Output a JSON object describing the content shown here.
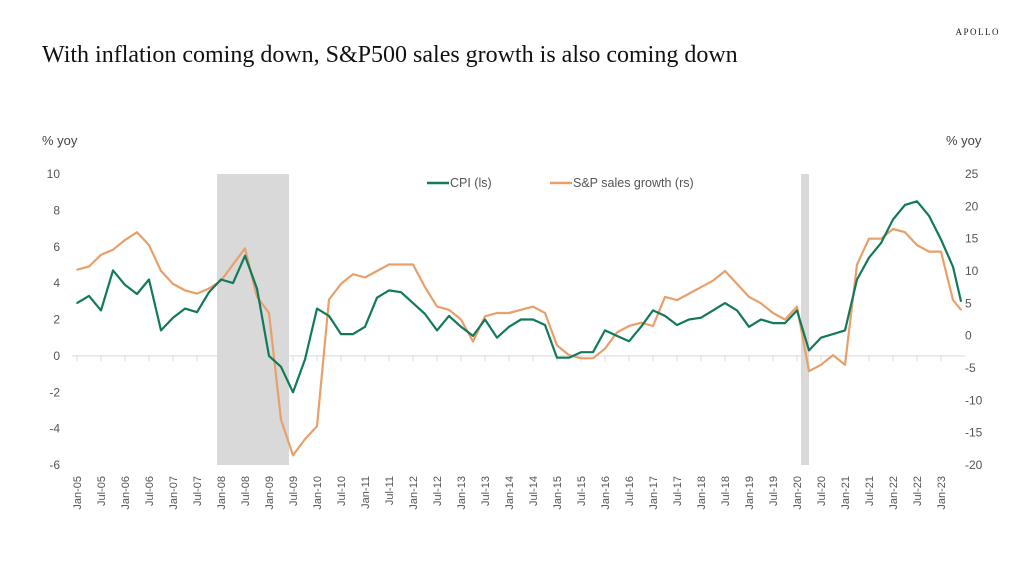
{
  "brand": "APOLLO",
  "title": "With inflation coming down, S&P500 sales growth is also coming down",
  "chart_data": {
    "type": "line",
    "title": "With inflation coming down, S&P500 sales growth is also coming down",
    "ylabel_left": "% yoy",
    "ylabel_right": "% yoy",
    "ylim_left": [
      -6,
      10
    ],
    "yticks_left": [
      10,
      8,
      6,
      4,
      2,
      0,
      -2,
      -4,
      -6
    ],
    "ylim_right": [
      -20,
      25
    ],
    "yticks_right": [
      25,
      20,
      15,
      10,
      5,
      0,
      -5,
      -10,
      -15,
      -20
    ],
    "legend_position": "top",
    "grid": false,
    "xtick_labels": [
      "Jan-05",
      "Jul-05",
      "Jan-06",
      "Jul-06",
      "Jan-07",
      "Jul-07",
      "Jan-08",
      "Jul-08",
      "Jan-09",
      "Jul-09",
      "Jan-10",
      "Jul-10",
      "Jan-11",
      "Jul-11",
      "Jan-12",
      "Jul-12",
      "Jan-13",
      "Jul-13",
      "Jan-14",
      "Jul-14",
      "Jan-15",
      "Jul-15",
      "Jan-16",
      "Jul-16",
      "Jan-17",
      "Jul-17",
      "Jan-18",
      "Jul-18",
      "Jan-19",
      "Jul-19",
      "Jan-20",
      "Jul-20",
      "Jan-21",
      "Jul-21",
      "Jan-22",
      "Jul-22",
      "Jan-23"
    ],
    "recessions": [
      [
        "Dec-07",
        "Jun-09"
      ],
      [
        "Feb-20",
        "Apr-20"
      ]
    ],
    "x": [
      "Jan-05",
      "Apr-05",
      "Jul-05",
      "Oct-05",
      "Jan-06",
      "Apr-06",
      "Jul-06",
      "Oct-06",
      "Jan-07",
      "Apr-07",
      "Jul-07",
      "Oct-07",
      "Jan-08",
      "Apr-08",
      "Jul-08",
      "Oct-08",
      "Jan-09",
      "Apr-09",
      "Jul-09",
      "Oct-09",
      "Jan-10",
      "Apr-10",
      "Jul-10",
      "Oct-10",
      "Jan-11",
      "Apr-11",
      "Jul-11",
      "Oct-11",
      "Jan-12",
      "Apr-12",
      "Jul-12",
      "Oct-12",
      "Jan-13",
      "Apr-13",
      "Jul-13",
      "Oct-13",
      "Jan-14",
      "Apr-14",
      "Jul-14",
      "Oct-14",
      "Jan-15",
      "Apr-15",
      "Jul-15",
      "Oct-15",
      "Jan-16",
      "Apr-16",
      "Jul-16",
      "Oct-16",
      "Jan-17",
      "Apr-17",
      "Jul-17",
      "Oct-17",
      "Jan-18",
      "Apr-18",
      "Jul-18",
      "Oct-18",
      "Jan-19",
      "Apr-19",
      "Jul-19",
      "Oct-19",
      "Jan-20",
      "Apr-20",
      "Jul-20",
      "Oct-20",
      "Jan-21",
      "Apr-21",
      "Jul-21",
      "Oct-21",
      "Jan-22",
      "Apr-22",
      "Jul-22",
      "Oct-22",
      "Jan-23",
      "Apr-23",
      "Jun-23"
    ],
    "series": [
      {
        "name": "CPI (ls)",
        "axis": "left",
        "color": "#127a5a",
        "values": [
          2.9,
          3.3,
          2.5,
          4.7,
          3.9,
          3.4,
          4.2,
          1.4,
          2.1,
          2.6,
          2.4,
          3.5,
          4.2,
          4.0,
          5.5,
          3.7,
          0.0,
          -0.6,
          -2.0,
          -0.2,
          2.6,
          2.2,
          1.2,
          1.2,
          1.6,
          3.2,
          3.6,
          3.5,
          2.9,
          2.3,
          1.4,
          2.2,
          1.6,
          1.1,
          2.0,
          1.0,
          1.6,
          2.0,
          2.0,
          1.7,
          -0.1,
          -0.1,
          0.2,
          0.2,
          1.4,
          1.1,
          0.8,
          1.6,
          2.5,
          2.2,
          1.7,
          2.0,
          2.1,
          2.5,
          2.9,
          2.5,
          1.6,
          2.0,
          1.8,
          1.8,
          2.5,
          0.3,
          1.0,
          1.2,
          1.4,
          4.2,
          5.4,
          6.2,
          7.5,
          8.3,
          8.5,
          7.7,
          6.4,
          4.9,
          3.0
        ]
      },
      {
        "name": "S&P sales growth (rs)",
        "axis": "right",
        "color": "#e8a06a",
        "values": [
          10.2,
          10.7,
          12.5,
          13.3,
          14.8,
          16.0,
          14.0,
          10.0,
          8.0,
          7.0,
          6.5,
          7.3,
          8.5,
          11.0,
          13.5,
          6.0,
          3.5,
          -13.0,
          -18.5,
          -16.0,
          -14.0,
          5.6,
          8.0,
          9.5,
          9.0,
          10.0,
          11.0,
          11.0,
          11.0,
          7.5,
          4.5,
          4.0,
          2.5,
          -0.9,
          3.0,
          3.5,
          3.5,
          4.0,
          4.5,
          3.5,
          -1.5,
          -3.0,
          -3.5,
          -3.5,
          -2.0,
          0.5,
          1.5,
          2.0,
          1.5,
          6.0,
          5.5,
          6.5,
          7.5,
          8.5,
          10.0,
          8.0,
          6.0,
          5.0,
          3.5,
          2.5,
          4.5,
          -5.5,
          -4.5,
          -3.0,
          -4.5,
          11.0,
          15.0,
          15.0,
          16.5,
          16.0,
          14.0,
          13.0,
          13.0,
          5.5,
          4.0
        ]
      }
    ]
  }
}
